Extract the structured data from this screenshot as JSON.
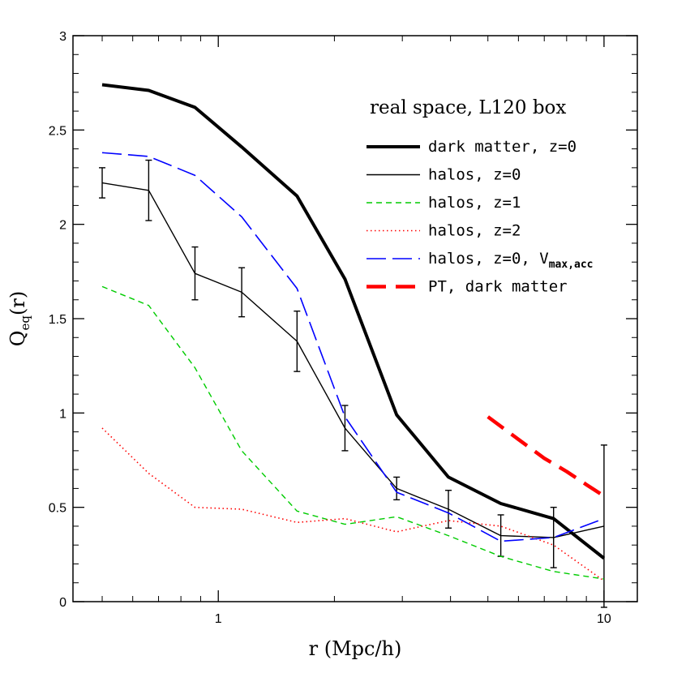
{
  "chart_data": {
    "type": "line",
    "title": "",
    "xlabel": "r (Mpc/h)",
    "ylabel_main": "Q",
    "ylabel_sub": "eq",
    "ylabel_suffix": "(r)",
    "xscale": "log",
    "xlim": [
      0.42,
      12.2
    ],
    "ylim": [
      0,
      3
    ],
    "x_ticks": [
      {
        "value": 1,
        "label": "1"
      },
      {
        "value": 10,
        "label": "10"
      }
    ],
    "y_ticks": [
      {
        "value": 0,
        "label": "0"
      },
      {
        "value": 0.5,
        "label": "0.5"
      },
      {
        "value": 1,
        "label": "1"
      },
      {
        "value": 1.5,
        "label": "1.5"
      },
      {
        "value": 2,
        "label": "2"
      },
      {
        "value": 2.5,
        "label": "2.5"
      },
      {
        "value": 3,
        "label": "3"
      }
    ],
    "legend_title": "real space, L120 box",
    "legend_position": "top-right",
    "series": [
      {
        "name": "dark matter, z=0",
        "color": "#000000",
        "style": "solid-thick",
        "x": [
          0.5,
          0.66,
          0.87,
          1.15,
          1.6,
          2.13,
          2.9,
          3.95,
          5.4,
          7.4,
          10
        ],
        "y": [
          2.74,
          2.71,
          2.62,
          2.41,
          2.15,
          1.71,
          0.99,
          0.66,
          0.52,
          0.44,
          0.23
        ]
      },
      {
        "name": "halos, z=0",
        "color": "#000000",
        "style": "solid-thin",
        "x": [
          0.5,
          0.66,
          0.87,
          1.15,
          1.6,
          2.13,
          2.9,
          3.95,
          5.4,
          7.4,
          10
        ],
        "y": [
          2.22,
          2.18,
          1.74,
          1.64,
          1.38,
          0.92,
          0.6,
          0.49,
          0.35,
          0.34,
          0.4
        ],
        "err": [
          0.08,
          0.16,
          0.14,
          0.13,
          0.16,
          0.12,
          0.06,
          0.1,
          0.11,
          0.16,
          0.43
        ]
      },
      {
        "name": "halos, z=1",
        "color": "#00cc00",
        "style": "dashed",
        "x": [
          0.5,
          0.66,
          0.87,
          1.15,
          1.6,
          2.13,
          2.9,
          3.95,
          5.4,
          7.4,
          10
        ],
        "y": [
          1.67,
          1.57,
          1.24,
          0.8,
          0.48,
          0.41,
          0.45,
          0.35,
          0.24,
          0.16,
          0.12
        ]
      },
      {
        "name": "halos, z=2",
        "color": "#ff0000",
        "style": "dotted",
        "x": [
          0.5,
          0.66,
          0.87,
          1.15,
          1.6,
          2.13,
          2.9,
          3.95,
          5.4,
          7.4,
          10
        ],
        "y": [
          0.92,
          0.68,
          0.5,
          0.49,
          0.42,
          0.44,
          0.37,
          0.43,
          0.4,
          0.3,
          0.11
        ]
      },
      {
        "name": "halos, z=0, V",
        "name_sub": "max,acc",
        "color": "#0000ff",
        "style": "long-dash",
        "x": [
          0.5,
          0.66,
          0.87,
          1.15,
          1.6,
          2.13,
          2.9,
          3.95,
          5.4,
          7.4,
          10
        ],
        "y": [
          2.38,
          2.36,
          2.26,
          2.04,
          1.66,
          0.98,
          0.58,
          0.47,
          0.32,
          0.34,
          0.44
        ]
      },
      {
        "name": "PT, dark matter",
        "color": "#ff0000",
        "style": "thick-dash",
        "x": [
          5,
          6,
          7,
          8,
          9,
          10
        ],
        "y": [
          0.98,
          0.86,
          0.76,
          0.69,
          0.62,
          0.56
        ]
      }
    ]
  }
}
